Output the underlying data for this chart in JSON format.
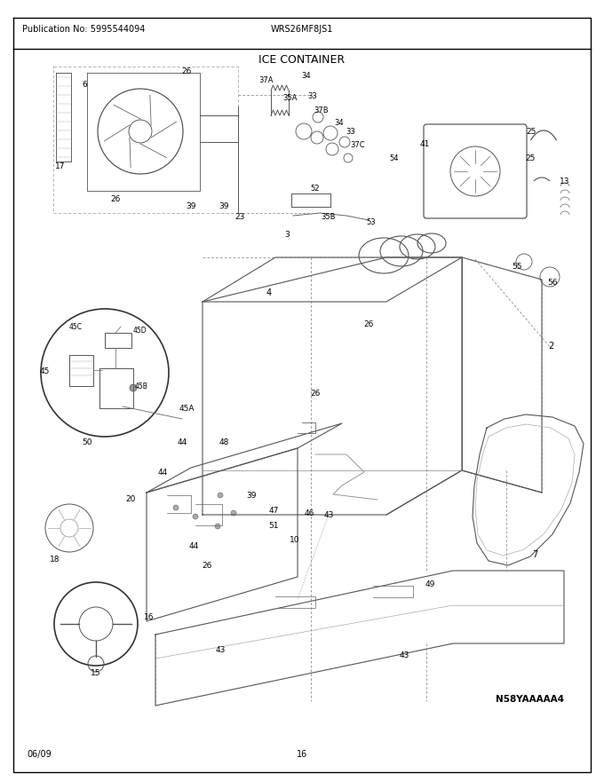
{
  "publication_no": "Publication No: 5995544094",
  "model": "WRS26MF8JS1",
  "title": "ICE CONTAINER",
  "diagram_code": "N58YAAAAA4",
  "date": "06/09",
  "page": "16",
  "bg_color": "#ffffff",
  "border_color": "#000000",
  "text_color": "#000000",
  "fig_width": 6.8,
  "fig_height": 8.8,
  "dpi": 100
}
